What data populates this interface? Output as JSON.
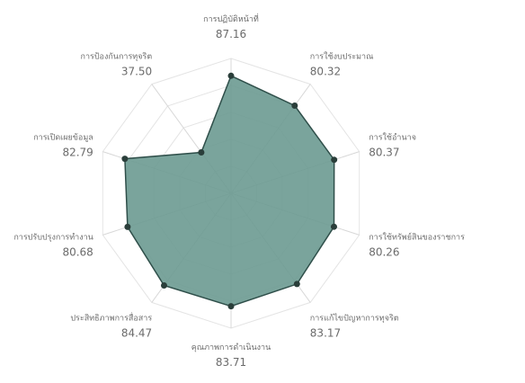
{
  "chart_data": {
    "type": "radar",
    "categories": [
      "การปฏิบัติหน้าที่",
      "การใช้งบประมาณ",
      "การใช้อำนาจ",
      "การใช้ทรัพย์สินของราชการ",
      "การแก้ไขปัญหาการทุจริต",
      "คุณภาพการดำเนินงาน",
      "ประสิทธิภาพการสื่อสาร",
      "การปรับปรุงการทำงาน",
      "การเปิดเผยข้อมูล",
      "การป้องกันการทุจริต"
    ],
    "values": [
      87.16,
      80.32,
      80.37,
      80.26,
      83.17,
      83.71,
      84.47,
      80.68,
      82.79,
      37.5
    ],
    "value_labels": [
      "87.16",
      "80.32",
      "80.37",
      "80.26",
      "83.17",
      "83.71",
      "84.47",
      "80.68",
      "82.79",
      "37.50"
    ],
    "rlim": [
      0,
      100
    ],
    "grid": true,
    "colors": {
      "fill": "#6b9a91",
      "stroke": "#2f4f4a",
      "point": "#2a3e3a",
      "grid": "#e4e4e4",
      "spoke": "#d8d8d8",
      "text": "#6b6b6b"
    }
  }
}
